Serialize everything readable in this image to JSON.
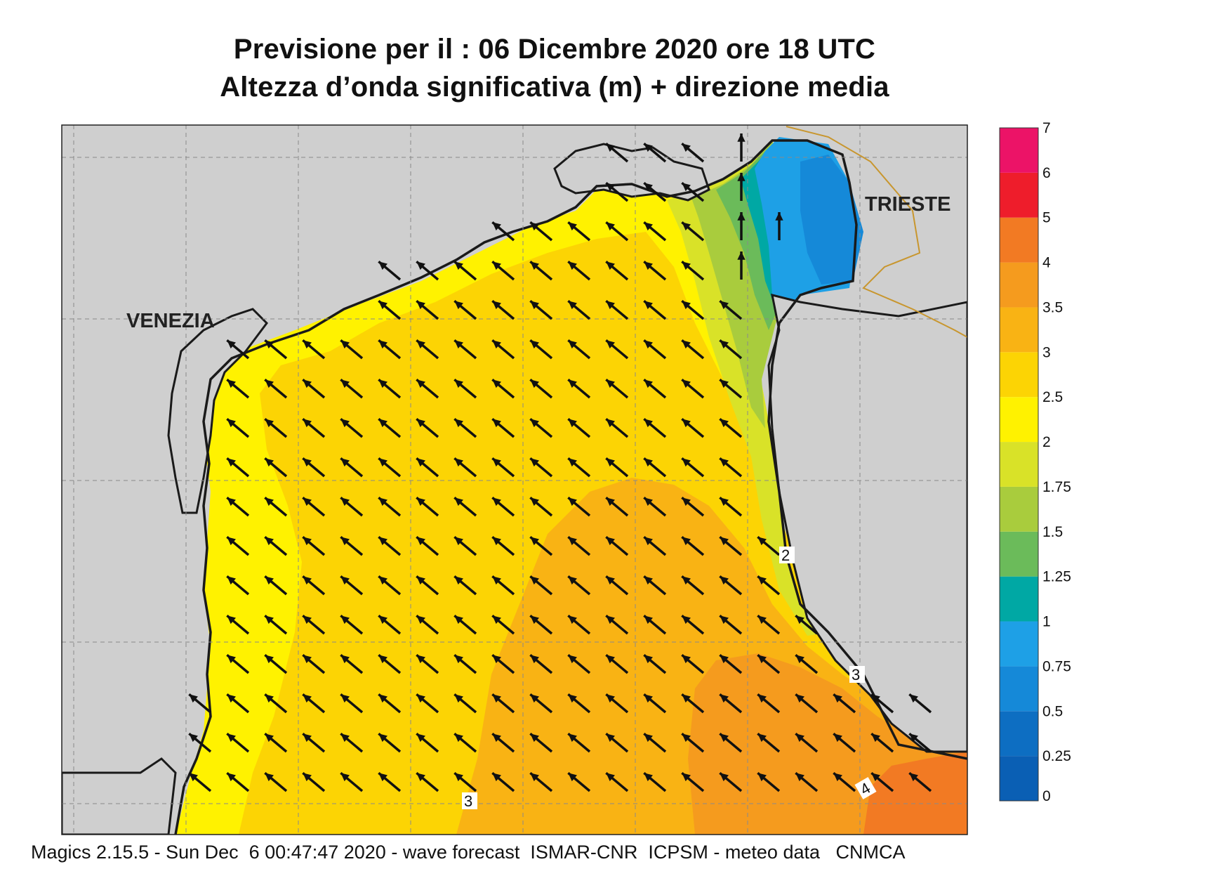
{
  "title": {
    "line1": "Previsione per il  :  06 Dicembre  2020   ore 18 UTC",
    "line2": "Altezza d’onda significativa (m) + direzione media"
  },
  "footer": "Magics 2.15.5 - Sun Dec  6 00:47:47 2020 - wave forecast  ISMAR-CNR  ICPSM - meteo data   CNMCA",
  "map": {
    "cities": [
      {
        "name": "VENEZIA"
      },
      {
        "name": "TRIESTE"
      }
    ],
    "contour_labels": [
      "3",
      "3",
      "4",
      "2"
    ],
    "colors": {
      "land": "#cfcfcf",
      "coast": "#1a1a1a",
      "border": "#c8962e",
      "grid": "#8a8a8a",
      "arrow": "#111111"
    },
    "mean_direction": "toward north-west"
  },
  "legend": {
    "title": "",
    "bins": [
      {
        "from": "0",
        "to": "0.25",
        "color": "#0a5fb4"
      },
      {
        "from": "0.25",
        "to": "0.5",
        "color": "#0d6ec2"
      },
      {
        "from": "0.5",
        "to": "0.75",
        "color": "#1589d8"
      },
      {
        "from": "0.75",
        "to": "1",
        "color": "#1ea0e6"
      },
      {
        "from": "1",
        "to": "1.25",
        "color": "#00a8a4"
      },
      {
        "from": "1.25",
        "to": "1.5",
        "color": "#6bbb5a"
      },
      {
        "from": "1.5",
        "to": "1.75",
        "color": "#a9cc3d"
      },
      {
        "from": "1.75",
        "to": "2",
        "color": "#d9e228"
      },
      {
        "from": "2",
        "to": "2.5",
        "color": "#fff200"
      },
      {
        "from": "2.5",
        "to": "3",
        "color": "#fcd404"
      },
      {
        "from": "3",
        "to": "3.5",
        "color": "#f9b314"
      },
      {
        "from": "3.5",
        "to": "4",
        "color": "#f59b1e"
      },
      {
        "from": "4",
        "to": "5",
        "color": "#f27a23"
      },
      {
        "from": "5",
        "to": "6",
        "color": "#ee1d2b"
      },
      {
        "from": "6",
        "to": "7",
        "color": "#ec1367"
      }
    ],
    "ticks": [
      "0",
      "0.25",
      "0.5",
      "0.75",
      "1",
      "1.25",
      "1.5",
      "1.75",
      "2",
      "2.5",
      "3",
      "3.5",
      "4",
      "5",
      "6",
      "7"
    ]
  }
}
